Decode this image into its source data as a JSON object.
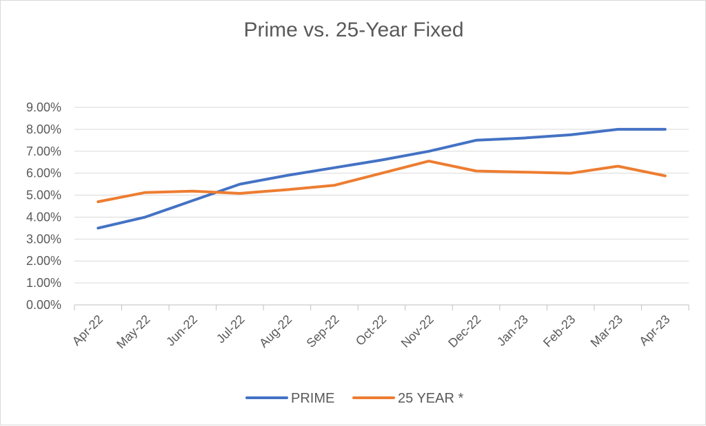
{
  "chart_data": {
    "type": "line",
    "title": "Prime vs. 25-Year Fixed",
    "xlabel": "",
    "ylabel": "",
    "categories": [
      "Apr-22",
      "May-22",
      "Jun-22",
      "Jul-22",
      "Aug-22",
      "Sep-22",
      "Oct-22",
      "Nov-22",
      "Dec-22",
      "Jan-23",
      "Feb-23",
      "Mar-23",
      "Apr-23"
    ],
    "y_ticks": [
      "0.00%",
      "1.00%",
      "2.00%",
      "3.00%",
      "4.00%",
      "5.00%",
      "6.00%",
      "7.00%",
      "8.00%",
      "9.00%"
    ],
    "ylim": [
      0,
      9
    ],
    "grid": true,
    "legend_position": "bottom",
    "series": [
      {
        "name": "PRIME",
        "color": "#4472c4",
        "values": [
          3.5,
          4.0,
          4.75,
          5.5,
          5.9,
          6.25,
          6.6,
          7.0,
          7.5,
          7.6,
          7.75,
          8.0,
          8.0
        ]
      },
      {
        "name": "25 YEAR *",
        "color": "#ed7d31",
        "values": [
          4.7,
          5.12,
          5.18,
          5.08,
          5.25,
          5.45,
          6.0,
          6.55,
          6.1,
          6.05,
          6.0,
          6.32,
          5.88
        ]
      }
    ]
  }
}
